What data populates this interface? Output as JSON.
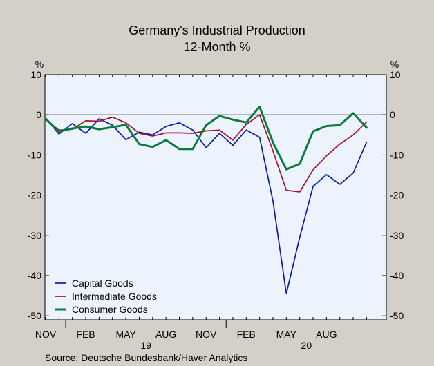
{
  "chart_data": {
    "type": "line",
    "title": "Germany's Industrial Production",
    "subtitle": "12-Month %",
    "ylabel_left": "%",
    "ylabel_right": "%",
    "ylim": [
      -51,
      10
    ],
    "yticks": [
      10,
      0,
      -10,
      -20,
      -30,
      -40,
      -50
    ],
    "month_labels": [
      "NOV",
      "FEB",
      "MAY",
      "AUG",
      "NOV",
      "FEB",
      "MAY",
      "AUG"
    ],
    "month_label_index": [
      0,
      3,
      6,
      9,
      12,
      15,
      18,
      21
    ],
    "year_labels": [
      "19",
      "20"
    ],
    "year_label_index": [
      7.5,
      19.5
    ],
    "year_divider_index": [
      1.5,
      13.5
    ],
    "zero_line": 0,
    "legend_position": "bottom-left",
    "series": [
      {
        "name": "Capital Goods",
        "color": "#0a1cad",
        "values": [
          -0.8,
          -4.8,
          -2.2,
          -4.6,
          -1.0,
          -2.6,
          -6.2,
          -4.3,
          -5.0,
          -2.9,
          -2.0,
          -3.8,
          -8.2,
          -4.6,
          -7.6,
          -3.8,
          -5.6,
          -21.5,
          -44.5,
          -30.5,
          -17.8,
          -14.9,
          -17.3,
          -14.5,
          -6.8
        ]
      },
      {
        "name": "Intermediate Goods",
        "color": "#a50f2c",
        "values": [
          -1.2,
          -3.8,
          -3.6,
          -1.5,
          -1.6,
          -0.6,
          -2.0,
          -4.6,
          -5.3,
          -4.5,
          -4.5,
          -4.6,
          -4.0,
          -3.8,
          -6.3,
          -2.4,
          0.0,
          -9.0,
          -18.8,
          -19.2,
          -13.7,
          -10.2,
          -7.3,
          -5.0,
          -1.8
        ]
      },
      {
        "name": "Consumer Goods",
        "color": "#0c7a3c",
        "values": [
          -1.0,
          -4.2,
          -3.4,
          -2.9,
          -3.6,
          -3.1,
          -2.5,
          -7.3,
          -8.0,
          -6.3,
          -8.5,
          -8.5,
          -2.6,
          -0.3,
          -1.2,
          -1.9,
          2.0,
          -6.9,
          -13.6,
          -12.2,
          -4.1,
          -2.8,
          -2.6,
          0.4,
          -3.2
        ]
      }
    ]
  },
  "source": "Source:   Deutsche Bundesbank/Haver Analytics"
}
